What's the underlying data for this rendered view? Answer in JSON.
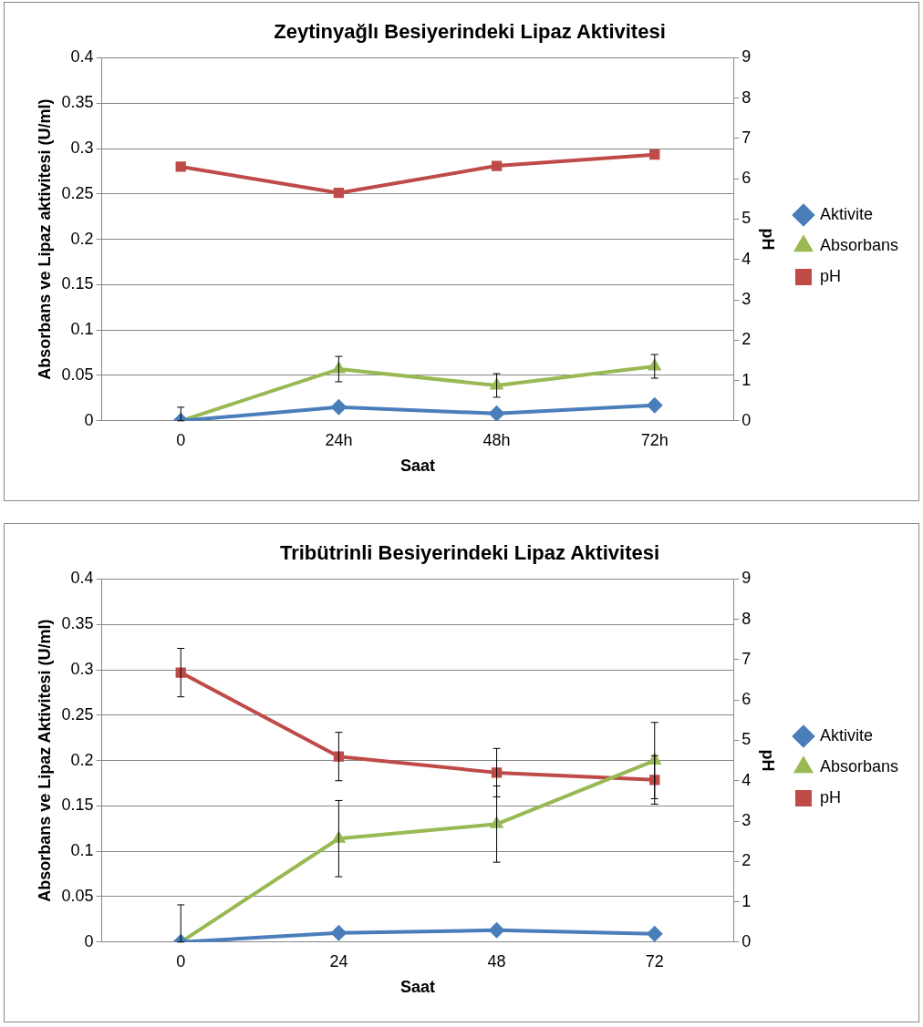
{
  "chart_data": [
    {
      "type": "line",
      "title": "Zeytinyağlı Besiyerindeki Lipaz Aktivitesi",
      "xlabel": "Saat",
      "ylabel": "Absorbans ve Lipaz aktivitesi (U/ml)",
      "y2label": "pH",
      "categories": [
        "0",
        "24h",
        "48h",
        "72h"
      ],
      "series": [
        {
          "name": "Aktivite",
          "color": "#4a7ebb",
          "marker": "diamond",
          "values": [
            0,
            0.015,
            0.008,
            0.017
          ]
        },
        {
          "name": "Absorbans",
          "color": "#98b954",
          "marker": "triangle",
          "values": [
            0,
            0.057,
            0.039,
            0.06
          ],
          "errors": [
            [
              0,
              0.015
            ],
            0.014,
            0.013,
            0.013
          ]
        },
        {
          "name": "pH",
          "color": "#be4b48",
          "marker": "square",
          "axis": "y2",
          "values": [
            6.3,
            5.65,
            6.32,
            6.6
          ]
        }
      ],
      "ylim": [
        0,
        0.4
      ],
      "yticks": [
        0,
        0.05,
        0.1,
        0.15,
        0.2,
        0.25,
        0.3,
        0.35,
        0.4
      ],
      "y2lim": [
        0,
        9
      ],
      "y2ticks": [
        0,
        1,
        2,
        3,
        4,
        5,
        6,
        7,
        8,
        9
      ],
      "grid": "y",
      "legend": "right"
    },
    {
      "type": "line",
      "title": "Tribütrinli Besiyerindeki Lipaz Aktivitesi",
      "xlabel": "Saat",
      "ylabel": "Absorbans ve Lipaz Aktivitesi (U/ml)",
      "y2label": "pH",
      "categories": [
        "0",
        "24",
        "48",
        "72"
      ],
      "series": [
        {
          "name": "Aktivite",
          "color": "#4a7ebb",
          "marker": "diamond",
          "values": [
            0,
            0.01,
            0.013,
            0.009
          ]
        },
        {
          "name": "Absorbans",
          "color": "#98b954",
          "marker": "triangle",
          "values": [
            0,
            0.114,
            0.13,
            0.2
          ],
          "errors": [
            [
              0,
              0.041
            ],
            0.042,
            0.042,
            0.042
          ]
        },
        {
          "name": "pH",
          "color": "#be4b48",
          "marker": "square",
          "axis": "y2",
          "values": [
            6.68,
            4.6,
            4.2,
            4.02
          ],
          "errors": [
            0.6,
            0.6,
            0.6,
            0.6
          ]
        }
      ],
      "ylim": [
        0,
        0.4
      ],
      "yticks": [
        0,
        0.05,
        0.1,
        0.15,
        0.2,
        0.25,
        0.3,
        0.35,
        0.4
      ],
      "y2lim": [
        0,
        9
      ],
      "y2ticks": [
        0,
        1,
        2,
        3,
        4,
        5,
        6,
        7,
        8,
        9
      ],
      "grid": "y",
      "legend": "right"
    }
  ]
}
